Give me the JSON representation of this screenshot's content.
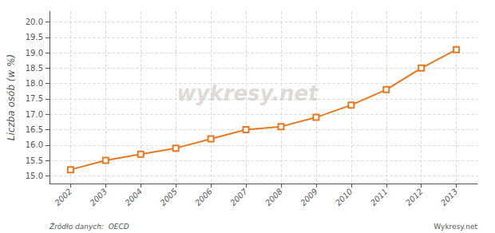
{
  "chart_data": {
    "type": "line",
    "ylabel": "Liczba osób (w %)",
    "watermark": "wykresy.net",
    "source": "Źródło danych:  OECD",
    "brand": "Wykresy.net",
    "x": [
      2002,
      2003,
      2004,
      2005,
      2006,
      2007,
      2008,
      2009,
      2010,
      2011,
      2012,
      2013
    ],
    "values": [
      15.2,
      15.5,
      15.7,
      15.9,
      16.2,
      16.5,
      16.6,
      16.9,
      17.3,
      17.8,
      18.5,
      19.1
    ],
    "color": "#e87820",
    "marker": "square",
    "xlim": [
      2001.4,
      2013.6
    ],
    "xticks": [
      2002,
      2003,
      2004,
      2005,
      2006,
      2007,
      2008,
      2009,
      2010,
      2011,
      2012,
      2013
    ],
    "ylim": [
      14.75,
      20.35
    ],
    "yticks": [
      {
        "value": 15.0,
        "label": "15.0"
      },
      15.5,
      {
        "value": 16.0,
        "label": "16.0"
      },
      16.5,
      {
        "value": 17.0,
        "label": "17.0"
      },
      17.5,
      {
        "value": 18.0,
        "label": "18.0"
      },
      18.5,
      {
        "value": 19.0,
        "label": "19.0"
      },
      19.5,
      {
        "value": 20.0,
        "label": "20.0"
      }
    ],
    "grid": true
  }
}
